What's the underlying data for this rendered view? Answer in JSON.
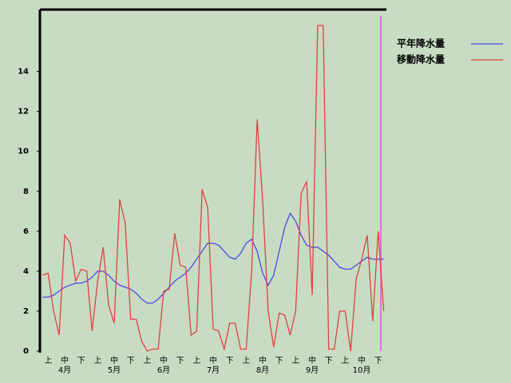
{
  "chart_data": {
    "type": "line",
    "categories": [
      null,
      "上",
      null,
      null,
      "中",
      null,
      null,
      "下",
      null,
      null,
      "上",
      null,
      null,
      "中",
      null,
      null,
      "下",
      null,
      null,
      "上",
      null,
      null,
      "中",
      null,
      null,
      "下",
      null,
      null,
      "上",
      null,
      null,
      "中",
      null,
      null,
      "下",
      null,
      null,
      "上",
      null,
      null,
      "中",
      null,
      null,
      "下",
      null,
      null,
      "上",
      null,
      null,
      "中",
      null,
      null,
      "下",
      null,
      null,
      "上",
      null,
      null,
      "中",
      null,
      null,
      "下",
      null
    ],
    "month_labels": [
      "4月",
      "5月",
      "6月",
      "7月",
      "8月",
      "9月",
      "10月"
    ],
    "series": [
      {
        "name": "平年降水量",
        "color": "#4a4ae0",
        "values": [
          2.7,
          2.7,
          2.8,
          3.0,
          3.2,
          3.3,
          3.4,
          3.4,
          3.5,
          3.7,
          4.0,
          4.0,
          3.8,
          3.5,
          3.3,
          3.2,
          3.1,
          2.9,
          2.6,
          2.4,
          2.4,
          2.6,
          2.9,
          3.2,
          3.5,
          3.7,
          3.9,
          4.2,
          4.6,
          5.0,
          5.4,
          5.4,
          5.3,
          5.0,
          4.7,
          4.6,
          4.9,
          5.4,
          5.6,
          5.0,
          3.9,
          3.3,
          3.8,
          5.0,
          6.2,
          6.9,
          6.5,
          5.8,
          5.3,
          5.2,
          5.2,
          5.0,
          4.8,
          4.5,
          4.2,
          4.1,
          4.1,
          4.3,
          4.5,
          4.7,
          4.6,
          4.6,
          4.6
        ]
      },
      {
        "name": "移動降水量",
        "color": "#e04040",
        "values": [
          3.8,
          3.9,
          2.0,
          0.8,
          5.8,
          5.4,
          3.5,
          4.1,
          4.0,
          1.0,
          3.5,
          5.2,
          2.3,
          1.4,
          7.6,
          6.4,
          1.6,
          1.6,
          0.5,
          0.0,
          0.1,
          0.1,
          3.0,
          3.1,
          5.9,
          4.3,
          4.2,
          0.8,
          1.0,
          8.1,
          7.2,
          1.1,
          1.0,
          0.1,
          1.4,
          1.4,
          0.1,
          0.1,
          4.0,
          11.6,
          7.5,
          2.0,
          0.2,
          1.9,
          1.8,
          0.8,
          2.0,
          7.9,
          8.5,
          2.8,
          16.3,
          16.3,
          0.1,
          0.1,
          2.0,
          2.0,
          0.0,
          3.6,
          4.6,
          5.8,
          1.5,
          6.0,
          2.0
        ]
      }
    ],
    "ylim": [
      0,
      17.1
    ],
    "yticks": [
      0,
      2,
      4,
      6,
      8,
      10,
      12,
      14
    ]
  }
}
